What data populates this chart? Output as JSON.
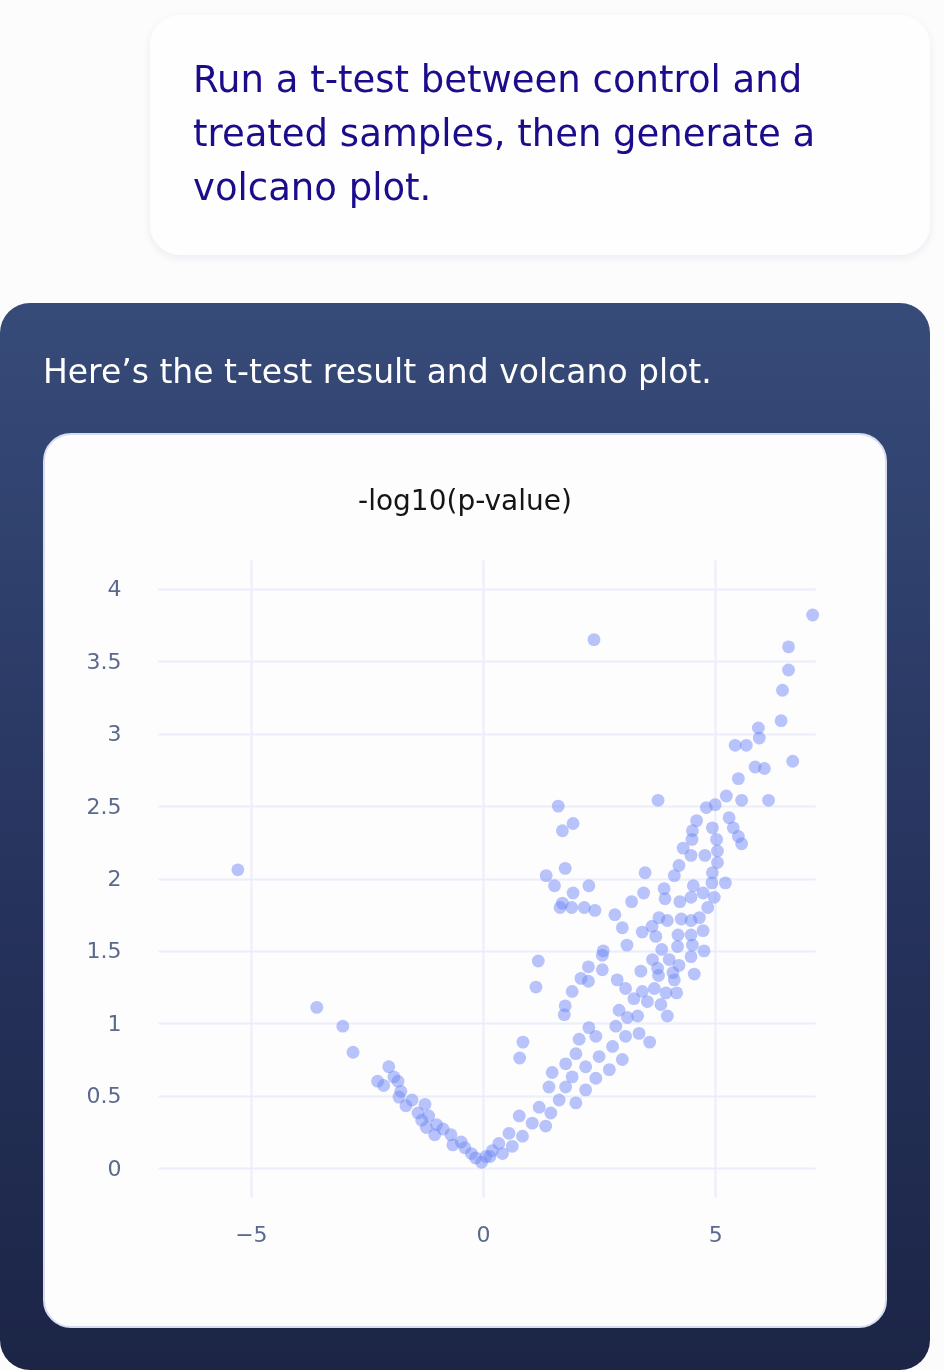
{
  "chart_data": {
    "type": "scatter",
    "title": "-log10(p-value)",
    "annotations": [
      "Run a t-test between control and treated samples, then generate a volcano plot.",
      "Here’s the t-test result and volcano plot."
    ],
    "x": [
      -5.28,
      -3.58,
      -3.02,
      -2.8,
      -2.03,
      -2.27,
      -2.14,
      -1.92,
      -1.83,
      -1.77,
      -1.81,
      -1.66,
      -1.53,
      -1.25,
      -1.4,
      -1.17,
      -1.32,
      -1.22,
      -1.0,
      -1.04,
      -0.86,
      -0.69,
      -0.65,
      -0.47,
      -0.39,
      -0.25,
      -0.16,
      -0.03,
      0.15,
      2.39,
      7.1,
      6.58,
      6.58,
      6.45,
      6.42,
      5.93,
      5.95,
      5.43,
      5.67,
      6.67,
      5.86,
      6.06,
      5.5,
      5.24,
      5.57,
      6.15,
      3.77,
      1.62,
      1.94,
      1.71,
      4.81,
      5.0,
      4.6,
      5.3,
      4.51,
      4.94,
      5.39,
      4.5,
      5.03,
      5.5,
      5.57,
      4.31,
      4.48,
      4.78,
      5.05,
      5.05,
      4.22,
      4.12,
      4.94,
      4.93,
      5.22,
      1.77,
      1.36,
      1.54,
      1.94,
      2.28,
      3.49,
      4.53,
      3.9,
      3.46,
      1.71,
      1.66,
      1.91,
      2.18,
      2.41,
      2.84,
      3.2,
      3.0,
      3.1,
      3.43,
      3.64,
      3.72,
      3.79,
      3.97,
      3.92,
      4.24,
      4.27,
      4.48,
      4.74,
      4.98,
      4.84,
      4.66,
      4.48,
      4.74,
      4.2,
      4.48,
      4.19,
      4.51,
      4.76,
      4.48,
      4.55,
      3.85,
      4.01,
      4.22,
      3.65,
      3.76,
      4.09,
      4.12,
      3.4,
      3.78,
      4.17,
      2.59,
      2.57,
      2.27,
      2.57,
      2.11,
      2.27,
      2.89,
      3.07,
      1.92,
      1.19,
      1.14,
      1.77,
      1.75,
      0.86,
      0.79,
      3.25,
      3.43,
      3.69,
      3.94,
      3.54,
      3.83,
      3.97,
      2.93,
      3.11,
      3.33,
      3.59,
      3.36,
      2.28,
      2.07,
      2.43,
      2.86,
      3.07,
      2.79,
      2.0,
      2.5,
      3.0,
      1.78,
      2.21,
      2.72,
      1.49,
      1.92,
      2.43,
      1.42,
      1.78,
      2.21,
      1.64,
      2.0,
      1.21,
      1.46,
      0.78,
      1.06,
      1.35,
      0.56,
      0.85,
      0.34,
      0.63,
      0.2,
      0.06,
      0.42
    ],
    "series": [
      {
        "color": "#7189f5",
        "values": [
          2.06,
          1.11,
          0.98,
          0.8,
          0.7,
          0.6,
          0.57,
          0.63,
          0.6,
          0.53,
          0.49,
          0.43,
          0.47,
          0.44,
          0.38,
          0.36,
          0.33,
          0.28,
          0.3,
          0.23,
          0.27,
          0.23,
          0.16,
          0.18,
          0.14,
          0.1,
          0.07,
          0.04,
          0.08,
          3.65,
          3.82,
          3.6,
          3.44,
          3.3,
          3.09,
          3.04,
          2.97,
          2.92,
          2.92,
          2.81,
          2.77,
          2.76,
          2.69,
          2.57,
          2.54,
          2.54,
          2.54,
          2.5,
          2.38,
          2.33,
          2.49,
          2.51,
          2.4,
          2.42,
          2.33,
          2.35,
          2.35,
          2.27,
          2.27,
          2.29,
          2.24,
          2.21,
          2.16,
          2.16,
          2.19,
          2.11,
          2.09,
          2.02,
          2.04,
          1.97,
          1.97,
          2.07,
          2.02,
          1.95,
          1.9,
          1.95,
          2.04,
          1.95,
          1.93,
          1.9,
          1.83,
          1.8,
          1.8,
          1.8,
          1.78,
          1.75,
          1.84,
          1.66,
          1.54,
          1.63,
          1.67,
          1.6,
          1.73,
          1.71,
          1.86,
          1.84,
          1.72,
          1.87,
          1.9,
          1.87,
          1.8,
          1.73,
          1.71,
          1.64,
          1.61,
          1.61,
          1.53,
          1.54,
          1.5,
          1.46,
          1.34,
          1.51,
          1.44,
          1.4,
          1.44,
          1.38,
          1.35,
          1.3,
          1.36,
          1.33,
          1.21,
          1.5,
          1.47,
          1.39,
          1.37,
          1.31,
          1.29,
          1.3,
          1.24,
          1.22,
          1.43,
          1.25,
          1.12,
          1.06,
          0.87,
          0.76,
          1.17,
          1.22,
          1.24,
          1.21,
          1.15,
          1.13,
          1.05,
          1.09,
          1.04,
          1.05,
          0.87,
          0.93,
          0.97,
          0.89,
          0.91,
          0.98,
          0.91,
          0.84,
          0.79,
          0.77,
          0.75,
          0.72,
          0.7,
          0.68,
          0.66,
          0.63,
          0.62,
          0.56,
          0.56,
          0.54,
          0.47,
          0.45,
          0.42,
          0.38,
          0.36,
          0.31,
          0.29,
          0.24,
          0.22,
          0.17,
          0.15,
          0.12,
          0.08,
          0.1
        ]
      }
    ],
    "xlim": [
      -7,
      7.15
    ],
    "ylim": [
      -0.2,
      4.2
    ],
    "xticks": [
      -5,
      0,
      5
    ],
    "yticks": [
      0,
      0.5,
      1,
      1.5,
      2,
      2.5,
      3,
      3.5,
      4
    ],
    "grid": true,
    "marker": "circle"
  }
}
